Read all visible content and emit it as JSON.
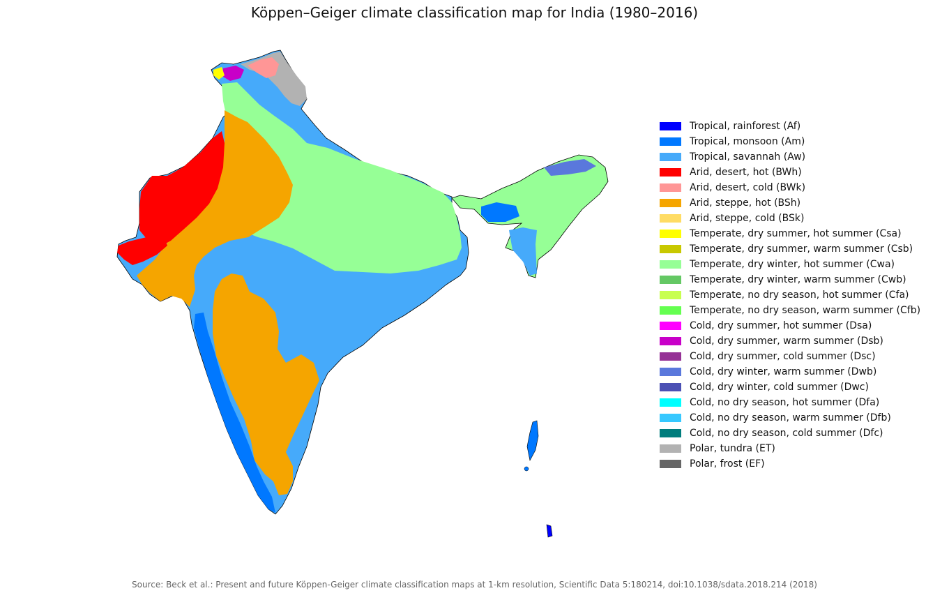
{
  "title": "Köppen–Geiger climate classification map for India (1980–2016)",
  "source": "Source: Beck et al.: Present and future Köppen-Geiger climate classification maps at 1-km resolution, Scientific Data 5:180214, doi:10.1038/sdata.2018.214 (2018)",
  "legend": [
    {
      "label": "Tropical, rainforest (Af)",
      "color": "#0000ff"
    },
    {
      "label": "Tropical, monsoon (Am)",
      "color": "#0078ff"
    },
    {
      "label": "Tropical, savannah (Aw)",
      "color": "#46aafa"
    },
    {
      "label": "Arid, desert, hot (BWh)",
      "color": "#ff0000"
    },
    {
      "label": "Arid, desert, cold (BWk)",
      "color": "#ff9696"
    },
    {
      "label": "Arid, steppe, hot (BSh)",
      "color": "#f5a500"
    },
    {
      "label": "Arid, steppe, cold (BSk)",
      "color": "#ffdc64"
    },
    {
      "label": "Temperate, dry summer, hot summer (Csa)",
      "color": "#ffff00"
    },
    {
      "label": "Temperate, dry summer, warm summer (Csb)",
      "color": "#c8c800"
    },
    {
      "label": "Temperate, dry winter, hot summer (Cwa)",
      "color": "#96ff96"
    },
    {
      "label": "Temperate, dry winter, warm summer (Cwb)",
      "color": "#64c864"
    },
    {
      "label": "Temperate, no dry season, hot summer (Cfa)",
      "color": "#c8ff50"
    },
    {
      "label": "Temperate, no dry season, warm summer (Cfb)",
      "color": "#64ff50"
    },
    {
      "label": "Cold, dry summer, hot summer (Dsa)",
      "color": "#ff00ff"
    },
    {
      "label": "Cold, dry summer, warm summer (Dsb)",
      "color": "#c800c8"
    },
    {
      "label": "Cold, dry summer, cold summer (Dsc)",
      "color": "#963296"
    },
    {
      "label": "Cold, dry winter, warm summer (Dwb)",
      "color": "#5a78dc"
    },
    {
      "label": "Cold, dry winter, cold summer (Dwc)",
      "color": "#4b50b4"
    },
    {
      "label": "Cold, no dry season, hot summer (Dfa)",
      "color": "#00ffff"
    },
    {
      "label": "Cold, no dry season, warm summer (Dfb)",
      "color": "#37c8ff"
    },
    {
      "label": "Cold, no dry season, cold summer (Dfc)",
      "color": "#007d7d"
    },
    {
      "label": "Polar, tundra (ET)",
      "color": "#b2b2b2"
    },
    {
      "label": "Polar, frost (EF)",
      "color": "#666666"
    }
  ]
}
